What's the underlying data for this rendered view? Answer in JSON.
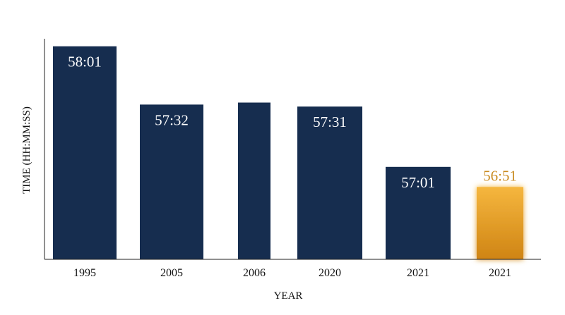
{
  "chart_data": {
    "type": "bar",
    "title": "",
    "xlabel": "YEAR",
    "ylabel": "TIME (HH:MM:SS)",
    "categories": [
      "1995",
      "2005",
      "2006",
      "2020",
      "2021",
      "2021"
    ],
    "values_seconds": [
      3481,
      3452,
      3453,
      3451,
      3421,
      3411
    ],
    "data_labels": [
      "58:01",
      "57:32",
      "",
      "57:31",
      "57:01",
      "56:51"
    ],
    "highlight_index": 5,
    "ylim_seconds": [
      3375,
      3490
    ],
    "grid": false,
    "legend": "none",
    "colors": {
      "bar": "#162d4f",
      "highlight_top": "#f5b63e",
      "highlight_bottom": "#cf8414",
      "highlight_label": "#c98a1e",
      "bar_label": "#ffffff",
      "axis": "#222222"
    }
  }
}
